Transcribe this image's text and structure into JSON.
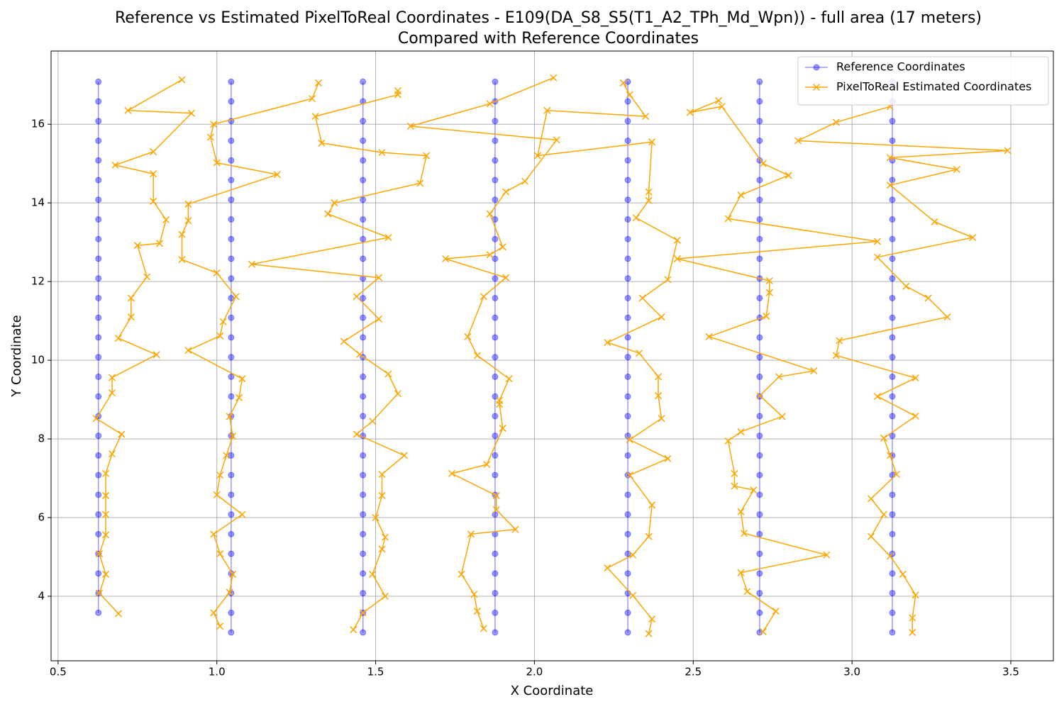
{
  "chart_data": {
    "type": "line",
    "title": "Reference vs Estimated PixelToReal Coordinates - E109(DA_S8_S5(T1_A2_TPh_Md_Wpn)) - full area (17 meters)",
    "subtitle": "Compared with Reference Coordinates",
    "x_label": "X Coordinate",
    "y_label": "Y Coordinate",
    "xlim": [
      0.478,
      3.634
    ],
    "ylim": [
      2.36,
      17.86
    ],
    "xticks": [
      0.5,
      {
        "value": 1,
        "label": "1.0"
      },
      1.5,
      {
        "value": 2,
        "label": "2.0"
      },
      2.5,
      {
        "value": 3,
        "label": "3.0"
      },
      3.5
    ],
    "yticks": [
      4,
      6,
      8,
      10,
      12,
      14,
      16
    ],
    "grid": true,
    "legend": "upper right",
    "series": [
      {
        "name": "Reference Coordinates",
        "color": "#0000ff",
        "marker": "circle",
        "x": [
          0.627,
          0.627,
          0.627,
          0.627,
          0.627,
          0.627,
          0.627,
          0.627,
          0.627,
          0.627,
          0.627,
          0.627,
          0.627,
          0.627,
          0.627,
          0.627,
          0.627,
          0.627,
          0.627,
          0.627,
          0.627,
          0.627,
          0.627,
          0.627,
          0.627,
          0.627,
          0.627,
          0.627,
          null,
          1.045,
          1.045,
          1.045,
          1.045,
          1.045,
          1.045,
          1.045,
          1.045,
          1.045,
          1.045,
          1.045,
          1.045,
          1.045,
          1.045,
          1.045,
          1.045,
          1.045,
          1.045,
          1.045,
          1.045,
          1.045,
          1.045,
          1.045,
          1.045,
          1.045,
          1.045,
          1.045,
          1.045,
          1.045,
          null,
          1.46,
          1.46,
          1.46,
          1.46,
          1.46,
          1.46,
          1.46,
          1.46,
          1.46,
          1.46,
          1.46,
          1.46,
          1.46,
          1.46,
          1.46,
          1.46,
          1.46,
          1.46,
          1.46,
          1.46,
          1.46,
          1.46,
          1.46,
          1.46,
          1.46,
          1.46,
          1.46,
          1.46,
          1.46,
          null,
          1.876,
          1.876,
          1.876,
          1.876,
          1.876,
          1.876,
          1.876,
          1.876,
          1.876,
          1.876,
          1.876,
          1.876,
          1.876,
          1.876,
          1.876,
          1.876,
          1.876,
          1.876,
          1.876,
          1.876,
          1.876,
          1.876,
          1.876,
          1.876,
          1.876,
          1.876,
          1.876,
          1.876,
          1.876,
          null,
          2.294,
          2.294,
          2.294,
          2.294,
          2.294,
          2.294,
          2.294,
          2.294,
          2.294,
          2.294,
          2.294,
          2.294,
          2.294,
          2.294,
          2.294,
          2.294,
          2.294,
          2.294,
          2.294,
          2.294,
          2.294,
          2.294,
          2.294,
          2.294,
          2.294,
          2.294,
          2.294,
          2.294,
          2.294,
          null,
          2.709,
          2.709,
          2.709,
          2.709,
          2.709,
          2.709,
          2.709,
          2.709,
          2.709,
          2.709,
          2.709,
          2.709,
          2.709,
          2.709,
          2.709,
          2.709,
          2.709,
          2.709,
          2.709,
          2.709,
          2.709,
          2.709,
          2.709,
          2.709,
          2.709,
          2.709,
          2.709,
          2.709,
          2.709,
          null,
          3.127,
          3.127,
          3.127,
          3.127,
          3.127,
          3.127,
          3.127,
          3.127,
          3.127,
          3.127,
          3.127,
          3.127,
          3.127,
          3.127,
          3.127,
          3.127,
          3.127,
          3.127,
          3.127,
          3.127,
          3.127,
          3.127,
          3.127,
          3.127,
          3.127,
          3.127,
          3.127,
          3.127,
          3.127
        ],
        "values": [
          17.08,
          16.58,
          16.08,
          15.58,
          15.08,
          14.58,
          14.08,
          13.58,
          13.08,
          12.58,
          12.08,
          11.58,
          11.08,
          10.58,
          10.08,
          9.58,
          9.08,
          8.58,
          8.08,
          7.58,
          7.08,
          6.58,
          6.08,
          5.58,
          5.08,
          4.58,
          4.08,
          3.58,
          null,
          17.08,
          16.58,
          16.08,
          15.58,
          15.08,
          14.58,
          14.08,
          13.58,
          13.08,
          12.58,
          12.08,
          11.58,
          11.08,
          10.58,
          10.08,
          9.58,
          9.08,
          8.58,
          8.08,
          7.58,
          7.08,
          6.58,
          6.08,
          5.58,
          5.08,
          4.58,
          4.08,
          3.58,
          3.08,
          null,
          17.08,
          16.58,
          16.08,
          15.58,
          15.08,
          14.58,
          14.08,
          13.58,
          13.08,
          12.58,
          12.08,
          11.58,
          11.08,
          10.58,
          10.08,
          9.58,
          9.08,
          8.58,
          8.08,
          7.58,
          7.08,
          6.58,
          6.08,
          5.58,
          5.08,
          4.58,
          4.08,
          3.58,
          3.08,
          null,
          17.08,
          16.58,
          16.08,
          15.58,
          15.08,
          14.58,
          14.08,
          13.58,
          13.08,
          12.58,
          12.08,
          11.58,
          11.08,
          10.58,
          10.08,
          9.58,
          9.08,
          8.58,
          8.08,
          7.58,
          7.08,
          6.58,
          6.08,
          5.58,
          5.08,
          4.58,
          4.08,
          3.58,
          3.08,
          null,
          17.08,
          16.58,
          16.08,
          15.58,
          15.08,
          14.58,
          14.08,
          13.58,
          13.08,
          12.58,
          12.08,
          11.58,
          11.08,
          10.58,
          10.08,
          9.58,
          9.08,
          8.58,
          8.08,
          7.58,
          7.08,
          6.58,
          6.08,
          5.58,
          5.08,
          4.58,
          4.08,
          3.58,
          3.08,
          null,
          17.08,
          16.58,
          16.08,
          15.58,
          15.08,
          14.58,
          14.08,
          13.58,
          13.08,
          12.58,
          12.08,
          11.58,
          11.08,
          10.58,
          10.08,
          9.58,
          9.08,
          8.58,
          8.08,
          7.58,
          7.08,
          6.58,
          6.08,
          5.58,
          5.08,
          4.58,
          4.08,
          3.58,
          3.08,
          null,
          17.08,
          16.58,
          16.08,
          15.58,
          15.08,
          14.58,
          14.08,
          13.58,
          13.08,
          12.58,
          12.08,
          11.58,
          11.08,
          10.58,
          10.08,
          9.58,
          9.08,
          8.58,
          8.08,
          7.58,
          7.08,
          6.58,
          6.08,
          5.58,
          5.08,
          4.58,
          4.08,
          3.58,
          3.08
        ]
      },
      {
        "name": "PixelToReal Estimated Coordinates",
        "color": "#ffa500",
        "marker": "x",
        "x": [
          0.69,
          0.63,
          0.65,
          0.63,
          0.65,
          0.65,
          0.65,
          0.65,
          0.67,
          0.7,
          0.62,
          0.67,
          0.67,
          0.81,
          0.69,
          0.73,
          0.73,
          0.78,
          0.75,
          0.82,
          0.84,
          0.8,
          0.8,
          0.68,
          0.8,
          0.92,
          0.72,
          0.89,
          null,
          1.32,
          1.3,
          0.99,
          0.98,
          1.0,
          1.19,
          0.91,
          0.91,
          0.89,
          0.89,
          1.0,
          1.06,
          1.02,
          1.01,
          0.91,
          1.08,
          1.07,
          1.04,
          1.05,
          1.03,
          1.01,
          1.0,
          1.08,
          0.99,
          1.01,
          1.05,
          1.04,
          0.99,
          1.01,
          null,
          1.57,
          1.57,
          1.31,
          1.33,
          1.52,
          1.66,
          1.64,
          1.37,
          1.35,
          1.54,
          1.11,
          1.51,
          1.44,
          1.51,
          1.4,
          1.45,
          1.54,
          1.57,
          1.49,
          1.44,
          1.59,
          1.52,
          1.52,
          1.5,
          1.53,
          1.52,
          1.49,
          1.53,
          1.46,
          1.43,
          null,
          2.06,
          1.86,
          1.61,
          2.07,
          1.97,
          1.91,
          1.86,
          1.9,
          1.86,
          1.72,
          1.91,
          1.84,
          1.79,
          1.82,
          1.92,
          1.89,
          1.89,
          1.9,
          1.85,
          1.74,
          1.88,
          1.88,
          1.94,
          1.8,
          1.77,
          1.81,
          1.82,
          1.84,
          null,
          2.28,
          2.3,
          2.35,
          2.04,
          2.01,
          2.37,
          2.36,
          2.36,
          2.32,
          2.45,
          2.42,
          2.34,
          2.4,
          2.23,
          2.33,
          2.39,
          2.39,
          2.4,
          2.3,
          2.42,
          2.3,
          2.37,
          2.36,
          2.31,
          2.23,
          2.31,
          2.37,
          2.36,
          null,
          2.58,
          2.49,
          2.59,
          2.72,
          2.8,
          2.65,
          2.61,
          3.08,
          2.45,
          2.74,
          2.74,
          2.73,
          2.55,
          2.88,
          2.77,
          2.71,
          2.78,
          2.65,
          2.61,
          2.63,
          2.63,
          2.69,
          2.65,
          2.66,
          2.92,
          2.65,
          2.67,
          2.76,
          2.72,
          null,
          3.12,
          2.95,
          2.83,
          3.49,
          3.12,
          3.33,
          3.12,
          3.26,
          3.38,
          3.08,
          3.17,
          3.24,
          3.3,
          2.96,
          2.95,
          3.2,
          3.08,
          3.2,
          3.1,
          3.12,
          3.14,
          3.06,
          3.1,
          3.06,
          3.12,
          3.16,
          3.2,
          3.19,
          3.19
        ],
        "values": [
          3.56,
          4.08,
          4.56,
          5.08,
          5.56,
          6.08,
          6.56,
          7.12,
          7.62,
          8.12,
          8.52,
          9.17,
          9.56,
          10.14,
          10.56,
          11.1,
          11.58,
          12.12,
          12.92,
          12.97,
          13.57,
          14.04,
          14.74,
          14.96,
          15.3,
          16.28,
          16.35,
          17.13,
          null,
          17.05,
          16.65,
          16.0,
          15.67,
          15.02,
          14.72,
          13.97,
          13.55,
          13.2,
          12.56,
          12.22,
          11.62,
          10.98,
          10.62,
          10.25,
          9.53,
          9.05,
          8.57,
          8.07,
          7.58,
          7.08,
          6.58,
          6.08,
          5.58,
          5.08,
          4.56,
          4.1,
          3.58,
          3.24,
          null,
          16.85,
          16.75,
          16.2,
          15.52,
          15.28,
          15.2,
          14.5,
          14.0,
          13.72,
          13.12,
          12.44,
          12.1,
          11.62,
          11.05,
          10.48,
          10.15,
          9.65,
          9.15,
          8.45,
          8.12,
          7.58,
          7.1,
          6.56,
          6.0,
          5.5,
          5.2,
          4.56,
          4.0,
          3.58,
          3.15,
          null,
          17.18,
          16.52,
          15.95,
          15.6,
          14.55,
          14.28,
          13.72,
          12.88,
          12.68,
          12.58,
          12.1,
          11.62,
          10.6,
          10.12,
          9.53,
          8.98,
          8.88,
          8.27,
          7.35,
          7.12,
          6.56,
          6.2,
          5.7,
          5.58,
          4.56,
          4.05,
          3.62,
          3.18,
          null,
          17.05,
          16.75,
          16.2,
          16.35,
          15.2,
          15.55,
          14.28,
          14.06,
          13.62,
          13.05,
          12.05,
          11.58,
          11.1,
          10.45,
          10.18,
          9.58,
          9.1,
          8.52,
          7.98,
          7.5,
          7.08,
          6.32,
          5.52,
          5.05,
          4.72,
          4.02,
          3.42,
          3.05,
          null,
          16.6,
          16.3,
          16.45,
          15.0,
          14.7,
          14.2,
          13.6,
          13.02,
          12.58,
          12.02,
          11.72,
          11.12,
          10.6,
          9.73,
          9.58,
          9.1,
          8.57,
          8.18,
          7.95,
          7.12,
          6.8,
          6.7,
          6.15,
          5.6,
          5.05,
          4.6,
          4.12,
          3.62,
          3.1,
          null,
          16.45,
          16.05,
          15.58,
          15.33,
          15.15,
          14.85,
          14.45,
          13.52,
          13.12,
          12.62,
          11.88,
          11.58,
          11.1,
          10.5,
          10.12,
          9.55,
          9.08,
          8.58,
          8.02,
          7.58,
          7.1,
          6.48,
          6.08,
          5.52,
          5.02,
          4.56,
          4.03,
          3.45,
          3.08
        ]
      }
    ]
  }
}
